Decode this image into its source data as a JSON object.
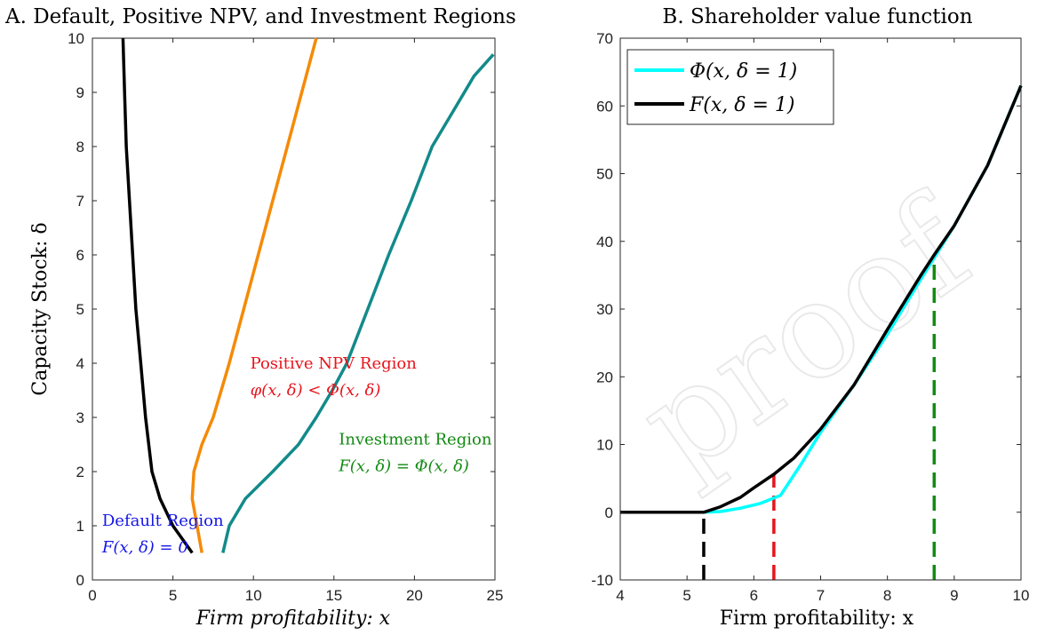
{
  "chart_data": [
    {
      "type": "line",
      "title": "A. Default, Positive NPV, and Investment Regions",
      "xlabel": "Firm profitability: x",
      "ylabel": "Capacity Stock: δ",
      "xlim": [
        0,
        25
      ],
      "ylim": [
        0,
        10
      ],
      "xticks": [
        "0",
        "5",
        "10",
        "15",
        "20",
        "25"
      ],
      "yticks": [
        "0",
        "1",
        "2",
        "3",
        "4",
        "5",
        "6",
        "7",
        "8",
        "9",
        "10"
      ],
      "grid": false,
      "series": [
        {
          "color": "#000000",
          "points": [
            [
              6.2,
              0.5
            ],
            [
              5.0,
              1.0
            ],
            [
              4.2,
              1.5
            ],
            [
              3.7,
              2.0
            ],
            [
              3.3,
              3.0
            ],
            [
              3.0,
              4.0
            ],
            [
              2.7,
              5.0
            ],
            [
              2.5,
              6.0
            ],
            [
              2.3,
              7.0
            ],
            [
              2.1,
              8.0
            ],
            [
              2.0,
              9.0
            ],
            [
              1.9,
              10.0
            ]
          ]
        },
        {
          "color": "#F58A07",
          "points": [
            [
              6.8,
              0.5
            ],
            [
              6.5,
              1.0
            ],
            [
              6.2,
              1.5
            ],
            [
              6.3,
              2.0
            ],
            [
              6.8,
              2.5
            ],
            [
              7.5,
              3.0
            ],
            [
              8.0,
              3.5
            ],
            [
              8.5,
              4.0
            ],
            [
              9.4,
              5.0
            ],
            [
              10.3,
              6.0
            ],
            [
              11.2,
              7.0
            ],
            [
              12.1,
              8.0
            ],
            [
              13.0,
              9.0
            ],
            [
              13.9,
              10.0
            ]
          ]
        },
        {
          "color": "#138A8A",
          "points": [
            [
              8.1,
              0.5
            ],
            [
              8.5,
              1.0
            ],
            [
              9.5,
              1.5
            ],
            [
              11.2,
              2.0
            ],
            [
              12.8,
              2.5
            ],
            [
              13.9,
              3.0
            ],
            [
              14.9,
              3.5
            ],
            [
              15.8,
              4.0
            ],
            [
              17.1,
              5.0
            ],
            [
              18.4,
              6.0
            ],
            [
              19.8,
              7.0
            ],
            [
              21.1,
              8.0
            ],
            [
              22.3,
              8.6
            ],
            [
              23.7,
              9.3
            ],
            [
              24.9,
              9.7
            ]
          ]
        }
      ],
      "annotations": [
        {
          "lines": [
            "Positive NPV Region",
            "φ(x, δ) < Φ(x, δ)"
          ],
          "color": "#E8141C",
          "x": 9.8,
          "y": 3.9
        },
        {
          "lines": [
            "Investment Region",
            "F(x, δ) = Φ(x, δ)"
          ],
          "color": "#138A13",
          "x": 15.3,
          "y": 2.5
        },
        {
          "lines": [
            "Default Region",
            "F(x, δ) = 0"
          ],
          "color": "#1515E8",
          "x": 0.6,
          "y": 1.0
        }
      ]
    },
    {
      "type": "line",
      "title": "B. Shareholder value function",
      "xlabel": "Firm profitability: x",
      "ylabel": "",
      "xlim": [
        4,
        10
      ],
      "ylim": [
        -10,
        70
      ],
      "xticks": [
        "4",
        "5",
        "6",
        "7",
        "8",
        "9",
        "10"
      ],
      "yticks": [
        "-10",
        "0",
        "10",
        "20",
        "30",
        "40",
        "50",
        "60",
        "70"
      ],
      "grid": false,
      "legend": "top-left",
      "series": [
        {
          "name": "Φ(x, δ = 1)",
          "color": "#00FFFF",
          "points": [
            [
              4.0,
              0
            ],
            [
              5.25,
              0
            ],
            [
              5.5,
              0.1
            ],
            [
              5.8,
              0.6
            ],
            [
              6.1,
              1.3
            ],
            [
              6.4,
              2.5
            ],
            [
              6.7,
              7.0
            ],
            [
              7.0,
              11.8
            ],
            [
              7.5,
              18.8
            ],
            [
              8.0,
              26.3
            ],
            [
              8.5,
              34.4
            ],
            [
              9.0,
              42.3
            ],
            [
              9.5,
              51.2
            ],
            [
              10.0,
              63.0
            ]
          ]
        },
        {
          "name": "F(x, δ = 1)",
          "color": "#000000",
          "points": [
            [
              4.0,
              0
            ],
            [
              5.25,
              0
            ],
            [
              5.5,
              0.8
            ],
            [
              5.8,
              2.2
            ],
            [
              6.0,
              3.6
            ],
            [
              6.3,
              5.6
            ],
            [
              6.6,
              8.0
            ],
            [
              7.0,
              12.3
            ],
            [
              7.5,
              18.8
            ],
            [
              8.0,
              27.0
            ],
            [
              8.5,
              35.0
            ],
            [
              8.7,
              38.0
            ],
            [
              9.0,
              42.3
            ],
            [
              9.5,
              51.2
            ],
            [
              10.0,
              63.0
            ]
          ]
        }
      ],
      "reference_lines": [
        {
          "color": "#000000",
          "x": 5.25,
          "y_top": 0
        },
        {
          "color": "#E8141C",
          "x": 6.3,
          "y_top": 5.6
        },
        {
          "color": "#138A13",
          "x": 8.7,
          "y_top": 38.0
        }
      ]
    }
  ],
  "watermark": "proof"
}
